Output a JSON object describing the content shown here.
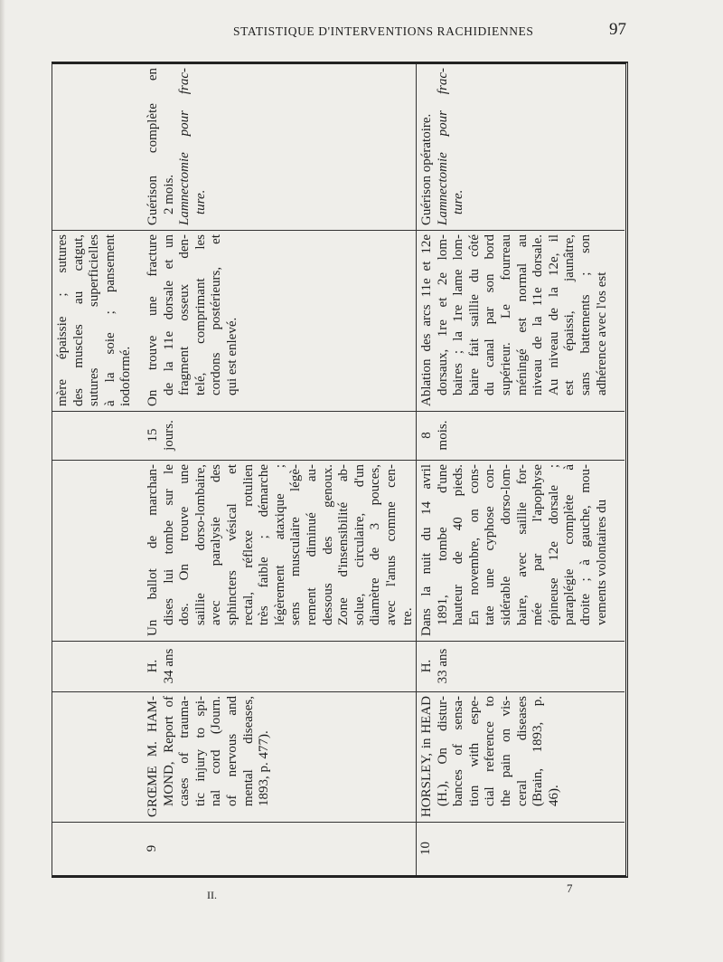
{
  "header": {
    "running_title": "STATISTIQUE D'INTERVENTIONS RACHIDIENNES",
    "page_number": "97"
  },
  "footer": {
    "signature_left": "II.",
    "signature_right": "7"
  },
  "table": {
    "continuation": {
      "operation": [
        "mère épaissie ; sutures",
        "des muscles au catgut,",
        "sutures superficielles",
        "à la soie ; pansement",
        "iodoformé."
      ]
    },
    "rows": [
      {
        "number": "9",
        "author": [
          "GRŒME M. HAM-",
          "MOND, Report of",
          "cases of trauma-",
          "tic injury to spi-",
          "nal cord (Journ.",
          "of nervous and",
          "mental diseases,",
          "1893, p. 477)."
        ],
        "sex_age": [
          "H.",
          "34 ans"
        ],
        "history": [
          "Un ballot de marchan-",
          "dises lui tombe sur le",
          "dos. On trouve une",
          "saillie dorso-lombaire,",
          "avec paralysie des",
          "sphincters vésical et",
          "rectal, réflexe rotulien",
          "très faible ; démarche",
          "légèrement ataxique ;",
          "sens musculaire légè-",
          "rement diminué au-",
          "dessous des genoux.",
          "Zone d'insensibilité ab-",
          "solue, circulaire, d'un",
          "diamètre de 3 pouces,",
          "avec l'anus comme cen-",
          "tre."
        ],
        "duration": [
          "15",
          "jours."
        ],
        "operation": [
          "On trouve une fracture",
          "de la 11e dorsale et un",
          "fragment osseux den-",
          "telé, comprimant les",
          "cordons postérieurs, et",
          "qui est enlevé."
        ],
        "result": [
          "Guérison complète en",
          "2 mois."
        ],
        "result_italic": [
          "Lamnectomie pour frac-",
          "ture."
        ]
      },
      {
        "number": "10",
        "author": [
          "HORSLEY, in HEAD",
          "(H.), On distur-",
          "bances of sensa-",
          "tion with espe-",
          "cial reference to",
          "the pain on vis-",
          "ceral diseases",
          "(Brain, 1893, p.",
          "46)."
        ],
        "sex_age": [
          "H.",
          "33 ans"
        ],
        "history": [
          "Dans la nuit du 14 avril",
          "1891, tombe d'une",
          "hauteur de 40 pieds.",
          "En novembre, on cons-",
          "tate une cyphose con-",
          "sidérable dorso-lom-",
          "baire, avec saillie for-",
          "mée par l'apophyse",
          "épineuse 12e dorsale ;",
          "paraplégie complète à",
          "droite ; à gauche, mou-",
          "vements volontaires du"
        ],
        "duration": [
          "8",
          "mois."
        ],
        "operation": [
          "Ablation des arcs 11e et 12e",
          "dorsaux, 1re et 2e lom-",
          "baires ; la 1re lame lom-",
          "baire fait saillie du côté",
          "du canal par son bord",
          "supérieur. Le fourreau",
          "méningé est normal au",
          "niveau de la 11e dorsale.",
          "Au niveau de la 12e, il",
          "est épaissi, jaunâtre,",
          "sans battements ; son",
          "adhérence avec l'os est"
        ],
        "result": [
          "Guérison opératoire."
        ],
        "result_italic": [
          "Lamnectomie pour frac-",
          "ture."
        ]
      }
    ]
  }
}
